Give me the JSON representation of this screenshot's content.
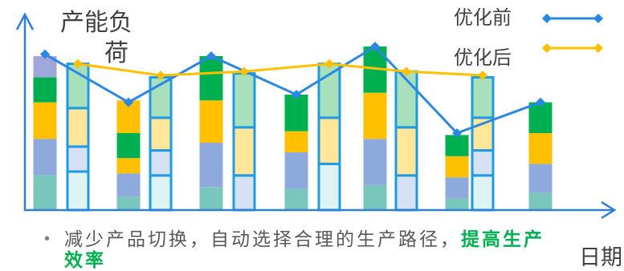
{
  "chart_data": {
    "type": "bar",
    "ylabel": "产能负荷",
    "xlabel": "日期",
    "ylim": [
      0,
      100
    ],
    "grid": false,
    "legend": "top-right",
    "series": [
      {
        "name": "优化前",
        "type": "line",
        "color": "#2b87e4",
        "values": [
          81,
          56,
          80,
          60,
          85,
          40,
          56
        ]
      },
      {
        "name": "优化后",
        "type": "line",
        "color": "#ffc000",
        "values": [
          76,
          70,
          72,
          76,
          72,
          70
        ]
      }
    ],
    "stacks": {
      "before": [
        [
          {
            "value": 18,
            "color": "#78c6bc"
          },
          {
            "value": 19,
            "color": "#8eaadc"
          },
          {
            "value": 19,
            "color": "#ffc000"
          },
          {
            "value": 13,
            "color": "#00b050"
          },
          {
            "value": 11,
            "color": "#a0a7da"
          }
        ],
        [
          {
            "value": 7,
            "color": "#78c6bc"
          },
          {
            "value": 12,
            "color": "#8eaadc"
          },
          {
            "value": 8,
            "color": "#ffc000"
          },
          {
            "value": 13,
            "color": "#00b050"
          },
          {
            "value": 17,
            "color": "#ffc000"
          }
        ],
        [
          {
            "value": 12,
            "color": "#78c6bc"
          },
          {
            "value": 23,
            "color": "#8eaadc"
          },
          {
            "value": 22,
            "color": "#ffc000"
          },
          {
            "value": 23,
            "color": "#00b050"
          }
        ],
        [
          {
            "value": 11,
            "color": "#78c6bc"
          },
          {
            "value": 19,
            "color": "#8eaadc"
          },
          {
            "value": 11,
            "color": "#ffc000"
          },
          {
            "value": 19,
            "color": "#00b050"
          }
        ],
        [
          {
            "value": 13,
            "color": "#78c6bc"
          },
          {
            "value": 24,
            "color": "#8eaadc"
          },
          {
            "value": 24,
            "color": "#ffc000"
          },
          {
            "value": 24,
            "color": "#00b050"
          }
        ],
        [
          {
            "value": 6,
            "color": "#78c6bc"
          },
          {
            "value": 11,
            "color": "#8eaadc"
          },
          {
            "value": 11,
            "color": "#ffc000"
          },
          {
            "value": 11,
            "color": "#00b050"
          }
        ],
        [
          {
            "value": 9,
            "color": "#78c6bc"
          },
          {
            "value": 15,
            "color": "#8eaadc"
          },
          {
            "value": 16,
            "color": "#ffc000"
          },
          {
            "value": 16,
            "color": "#00b050"
          }
        ]
      ],
      "after": [
        [
          {
            "value": 20,
            "color": "#def3f3"
          },
          {
            "value": 13,
            "color": "#d6e1f5"
          },
          {
            "value": 20,
            "color": "#ffe699"
          },
          {
            "value": 23,
            "color": "#a8e0bc"
          }
        ],
        [
          {
            "value": 18,
            "color": "#def3f3"
          },
          {
            "value": 13,
            "color": "#d6e1f5"
          },
          {
            "value": 17,
            "color": "#ffe699"
          },
          {
            "value": 21,
            "color": "#a8e0bc"
          }
        ],
        [
          {
            "value": 18,
            "color": "#d6e1f5"
          },
          {
            "value": 25,
            "color": "#ffe699"
          },
          {
            "value": 28,
            "color": "#a8e0bc"
          }
        ],
        [
          {
            "value": 24,
            "color": "#def3f3"
          },
          {
            "value": 24,
            "color": "#ffe699"
          },
          {
            "value": 28,
            "color": "#a8e0bc"
          }
        ],
        [
          {
            "value": 18,
            "color": "#d6e1f5"
          },
          {
            "value": 25,
            "color": "#ffe699"
          },
          {
            "value": 29,
            "color": "#a8e0bc"
          }
        ],
        [
          {
            "value": 18,
            "color": "#def3f3"
          },
          {
            "value": 13,
            "color": "#d6e1f5"
          },
          {
            "value": 17,
            "color": "#ffe699"
          },
          {
            "value": 21,
            "color": "#a8e0bc"
          }
        ]
      ],
      "after_border": "#1e9be2"
    }
  },
  "note": {
    "bullet": "•",
    "text": "减少产品切换，自动选择合理的生产路径，",
    "emphasis": "提高生产效率",
    "emphasis_color": "#00b050"
  }
}
